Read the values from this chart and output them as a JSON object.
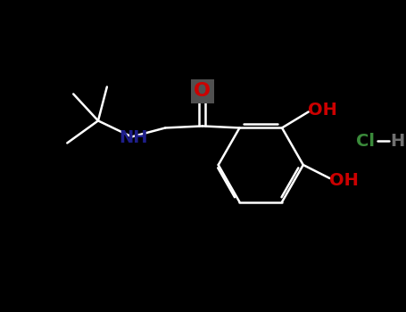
{
  "background_color": "#000000",
  "bond_color": "#ffffff",
  "figsize": [
    4.55,
    3.5
  ],
  "dpi": 100,
  "atoms": {
    "N": {
      "color": "#1E1E8B",
      "label": "NH"
    },
    "O_ketone": {
      "color": "#CC0000",
      "label": "O"
    },
    "OH1": {
      "color": "#CC0000",
      "label": "OH"
    },
    "OH2": {
      "color": "#CC0000",
      "label": "OH"
    },
    "Cl": {
      "color": "#3A8A3A",
      "label": "Cl"
    },
    "H": {
      "color": "#707070",
      "label": "H"
    }
  },
  "O_bg_color": "#505050"
}
